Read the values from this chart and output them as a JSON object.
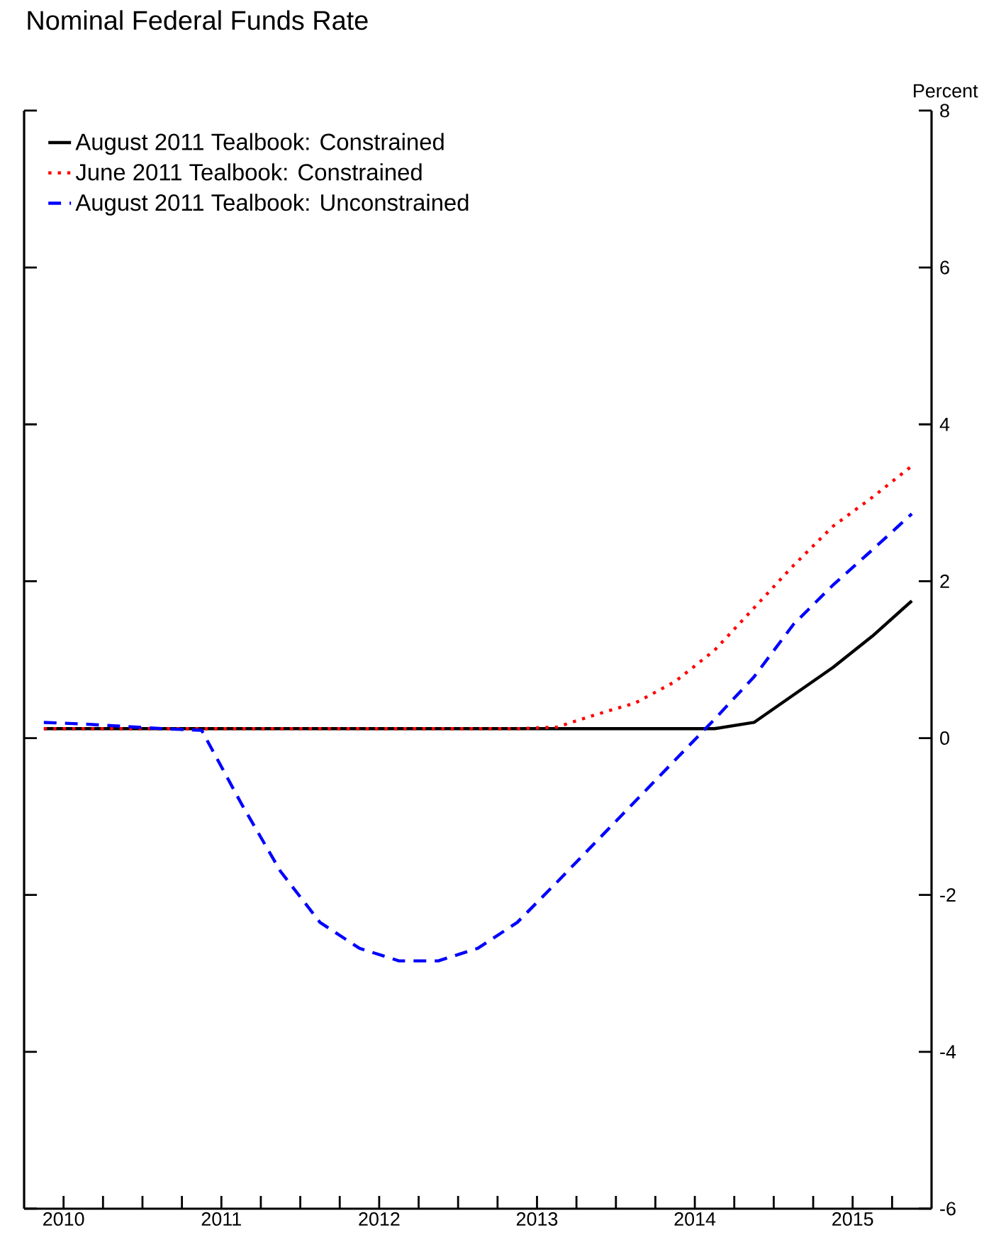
{
  "chart_data": {
    "type": "line",
    "title": "Nominal Federal Funds Rate",
    "ylabel": "Percent",
    "x": [
      2010.375,
      2010.625,
      2010.875,
      2011.125,
      2011.375,
      2011.625,
      2011.875,
      2012.125,
      2012.375,
      2012.625,
      2012.875,
      2013.125,
      2013.375,
      2013.625,
      2013.875,
      2014.125,
      2014.375,
      2014.625,
      2014.875,
      2015.125,
      2015.375,
      2015.625,
      2015.875
    ],
    "series": [
      {
        "name": "August 2011 Tealbook: Constrained",
        "color": "#000000",
        "line_style": "solid",
        "values": [
          0.12,
          0.12,
          0.12,
          0.12,
          0.12,
          0.12,
          0.12,
          0.12,
          0.12,
          0.12,
          0.12,
          0.12,
          0.12,
          0.12,
          0.12,
          0.12,
          0.12,
          0.12,
          0.2,
          0.55,
          0.9,
          1.3,
          1.75
        ]
      },
      {
        "name": "June 2011 Tealbook: Constrained",
        "color": "#ff0000",
        "line_style": "dotted",
        "values": [
          0.12,
          0.12,
          0.12,
          0.12,
          0.12,
          0.12,
          0.12,
          0.12,
          0.12,
          0.12,
          0.12,
          0.12,
          0.12,
          0.14,
          0.3,
          0.45,
          0.72,
          1.12,
          1.66,
          2.2,
          2.7,
          3.07,
          3.47
        ]
      },
      {
        "name": "August 2011 Tealbook: Unconstrained",
        "color": "#0000ff",
        "line_style": "dashed",
        "values": [
          0.2,
          0.18,
          0.15,
          0.12,
          0.1,
          -0.83,
          -1.7,
          -2.35,
          -2.68,
          -2.84,
          -2.84,
          -2.68,
          -2.35,
          -1.84,
          -1.32,
          -0.8,
          -0.28,
          0.24,
          0.78,
          1.45,
          1.95,
          2.4,
          2.86
        ]
      }
    ],
    "xlim": [
      2010.25,
      2016
    ],
    "xticks": [
      {
        "value": 2010.5,
        "label": "2010"
      },
      {
        "value": 2010.75,
        "label": null
      },
      {
        "value": 2011,
        "label": null
      },
      {
        "value": 2011.25,
        "label": null
      },
      {
        "value": 2011.5,
        "label": "2011"
      },
      {
        "value": 2011.75,
        "label": null
      },
      {
        "value": 2012,
        "label": null
      },
      {
        "value": 2012.25,
        "label": null
      },
      {
        "value": 2012.5,
        "label": "2012"
      },
      {
        "value": 2012.75,
        "label": null
      },
      {
        "value": 2013,
        "label": null
      },
      {
        "value": 2013.25,
        "label": null
      },
      {
        "value": 2013.5,
        "label": "2013"
      },
      {
        "value": 2013.75,
        "label": null
      },
      {
        "value": 2014,
        "label": null
      },
      {
        "value": 2014.25,
        "label": null
      },
      {
        "value": 2014.5,
        "label": "2014"
      },
      {
        "value": 2014.75,
        "label": null
      },
      {
        "value": 2015,
        "label": null
      },
      {
        "value": 2015.25,
        "label": null
      },
      {
        "value": 2015.5,
        "label": "2015"
      },
      {
        "value": 2015.75,
        "label": null
      }
    ],
    "ylim": [
      -6,
      8
    ],
    "yticks": [
      -6,
      -4,
      -2,
      0,
      2,
      4,
      6,
      8
    ],
    "grid": false,
    "legend": "top left",
    "marker": "none"
  }
}
